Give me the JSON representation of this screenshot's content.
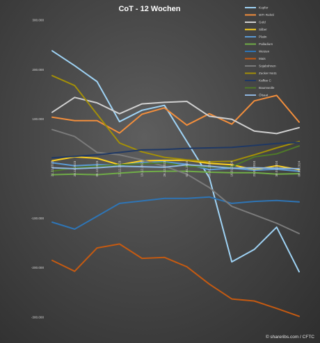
{
  "chart_data": {
    "type": "line",
    "title": "CoT - 12 Wochen",
    "credit": "© shareribs.com / CFTC",
    "x": [
      "21.11.2023",
      "28.11.2023",
      "05.12.2023",
      "12.12.2023",
      "19.12.2023",
      "26.12.2023",
      "02.01.2024",
      "09.01.2024",
      "16.01.2024",
      "23.01.2024",
      "30.01.2024",
      "06.02.2024"
    ],
    "ylim": [
      -300000,
      300000
    ],
    "yticks": [
      -300000,
      -200000,
      -100000,
      0,
      100000,
      200000,
      300000
    ],
    "ytick_labels": [
      "-300.000",
      "-200.000",
      "-100.000",
      "",
      "100.000",
      "200.000",
      "300.000"
    ],
    "grid": false,
    "legend_position": "top-right",
    "series": [
      {
        "name": "Kupfer",
        "color": "#9fd3f5",
        "values": [
          238000,
          208000,
          176000,
          95000,
          118000,
          128000,
          55000,
          -18000,
          -188000,
          -163000,
          -118000,
          -208000
        ]
      },
      {
        "name": "WTI Rohöl",
        "color": "#f28e3c",
        "values": [
          104000,
          97000,
          97000,
          72000,
          110000,
          123000,
          88000,
          111000,
          90000,
          137000,
          148000,
          94000
        ]
      },
      {
        "name": "Gold",
        "color": "#d0d0d0",
        "values": [
          114000,
          144000,
          133000,
          111000,
          131000,
          134000,
          136000,
          106000,
          100000,
          76000,
          71000,
          83000
        ]
      },
      {
        "name": "Silber",
        "color": "#ffd21f",
        "values": [
          16000,
          24000,
          21000,
          8000,
          16000,
          17000,
          17000,
          11000,
          8000,
          -2000,
          6000,
          -2000
        ]
      },
      {
        "name": "Platin",
        "color": "#5b9bd5",
        "values": [
          12000,
          6000,
          8000,
          7000,
          12000,
          14000,
          9000,
          -2000,
          1000,
          -3000,
          -1000,
          -5000
        ]
      },
      {
        "name": "Palladium",
        "color": "#70ad47",
        "values": [
          -12000,
          -11000,
          -12000,
          -9000,
          -6000,
          -5000,
          -5000,
          -7000,
          -8000,
          -8000,
          -11000,
          -10000
        ]
      },
      {
        "name": "Weizen",
        "color": "#2e75b6",
        "values": [
          -108000,
          -122000,
          -96000,
          -70000,
          -65000,
          -60000,
          -60000,
          -57000,
          -70000,
          -66000,
          -64000,
          -67000
        ]
      },
      {
        "name": "Mais",
        "color": "#c55a11",
        "values": [
          -185000,
          -207000,
          -160000,
          -152000,
          -181000,
          -179000,
          -198000,
          -233000,
          -263000,
          -267000,
          -282000,
          -298000
        ]
      },
      {
        "name": "Sojabohnen",
        "color": "#7b7b7b",
        "values": [
          79000,
          65000,
          33000,
          28000,
          18000,
          5000,
          -11000,
          -38000,
          -76000,
          -93000,
          -110000,
          -131000
        ]
      },
      {
        "name": "Zucker No11",
        "color": "#a38f08",
        "values": [
          188000,
          168000,
          110000,
          52000,
          34000,
          23000,
          18000,
          14000,
          15000,
          28000,
          42000,
          55000
        ]
      },
      {
        "name": "Kaffee C",
        "color": "#1f3864",
        "values": [
          22000,
          25000,
          28000,
          33000,
          38000,
          39000,
          41000,
          42000,
          43000,
          47000,
          51000,
          53000
        ]
      },
      {
        "name": "Baumwolle",
        "color": "#4f7a28",
        "values": [
          -5000,
          2000,
          5000,
          8000,
          10000,
          12000,
          5000,
          3000,
          4000,
          24000,
          30000,
          46000
        ]
      },
      {
        "name": "Ölsaat",
        "color": "#8fb6e0",
        "values": [
          2000,
          0,
          2000,
          5000,
          4000,
          3000,
          8000,
          5000,
          1000,
          2000,
          1000,
          0
        ]
      }
    ]
  }
}
